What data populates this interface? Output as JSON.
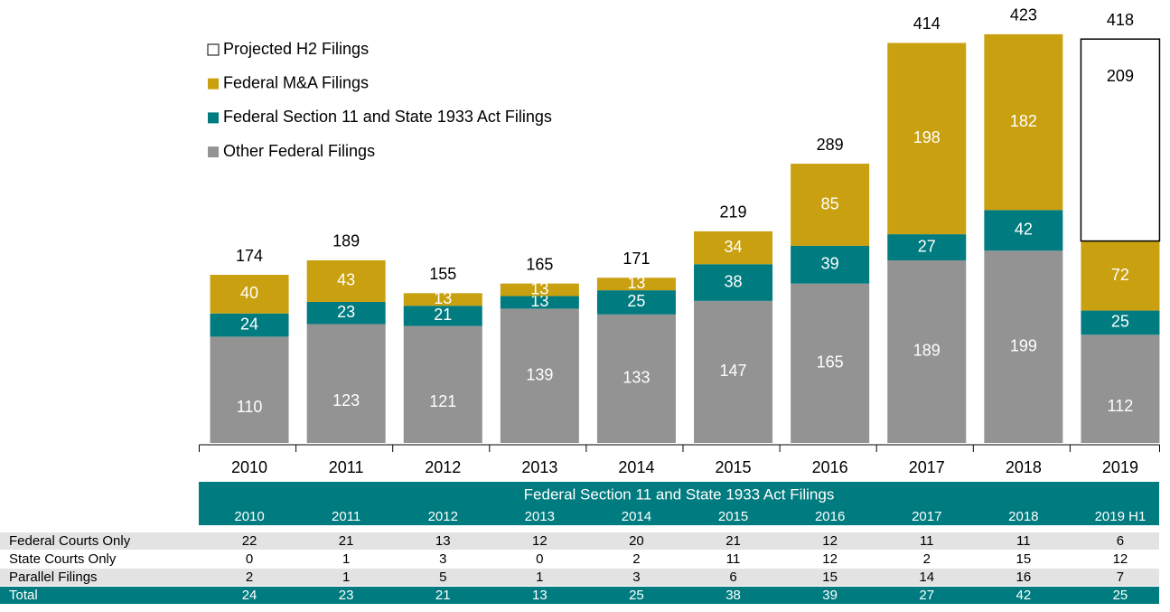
{
  "chart_data": {
    "type": "stacked_bar",
    "categories": [
      "2010",
      "2011",
      "2012",
      "2013",
      "2014",
      "2015",
      "2016",
      "2017",
      "2018",
      "2019"
    ],
    "series": [
      {
        "name": "Other Federal Filings",
        "color": "#939393",
        "values": [
          110,
          123,
          121,
          139,
          133,
          147,
          165,
          189,
          199,
          112
        ]
      },
      {
        "name": "Federal Section 11 and State 1933 Act Filings",
        "color": "#007b7f",
        "values": [
          24,
          23,
          21,
          13,
          25,
          38,
          39,
          27,
          42,
          25
        ]
      },
      {
        "name": "Federal M&A Filings",
        "color": "#c9a00f",
        "values": [
          40,
          43,
          13,
          13,
          13,
          34,
          85,
          198,
          182,
          72
        ]
      },
      {
        "name": "Projected H2 Filings",
        "color": "#ffffff",
        "values": [
          null,
          null,
          null,
          null,
          null,
          null,
          null,
          null,
          null,
          209
        ]
      }
    ],
    "totals": [
      174,
      189,
      155,
      165,
      171,
      219,
      289,
      414,
      423,
      418
    ],
    "ylim": [
      0,
      450
    ],
    "legend": "upper left"
  },
  "table": {
    "title": "Federal Section 11 and State 1933 Act Filings",
    "columns": [
      "2010",
      "2011",
      "2012",
      "2013",
      "2014",
      "2015",
      "2016",
      "2017",
      "2018",
      "2019 H1"
    ],
    "rows": [
      {
        "label": "Federal Courts Only",
        "values": [
          22,
          21,
          13,
          12,
          20,
          21,
          12,
          11,
          11,
          6
        ]
      },
      {
        "label": "State Courts Only",
        "values": [
          0,
          1,
          3,
          0,
          2,
          11,
          12,
          2,
          15,
          12
        ]
      },
      {
        "label": "Parallel Filings",
        "values": [
          2,
          1,
          5,
          1,
          3,
          6,
          15,
          14,
          16,
          7
        ]
      },
      {
        "label": "Total",
        "values": [
          24,
          23,
          21,
          13,
          25,
          38,
          39,
          27,
          42,
          25
        ]
      }
    ]
  }
}
